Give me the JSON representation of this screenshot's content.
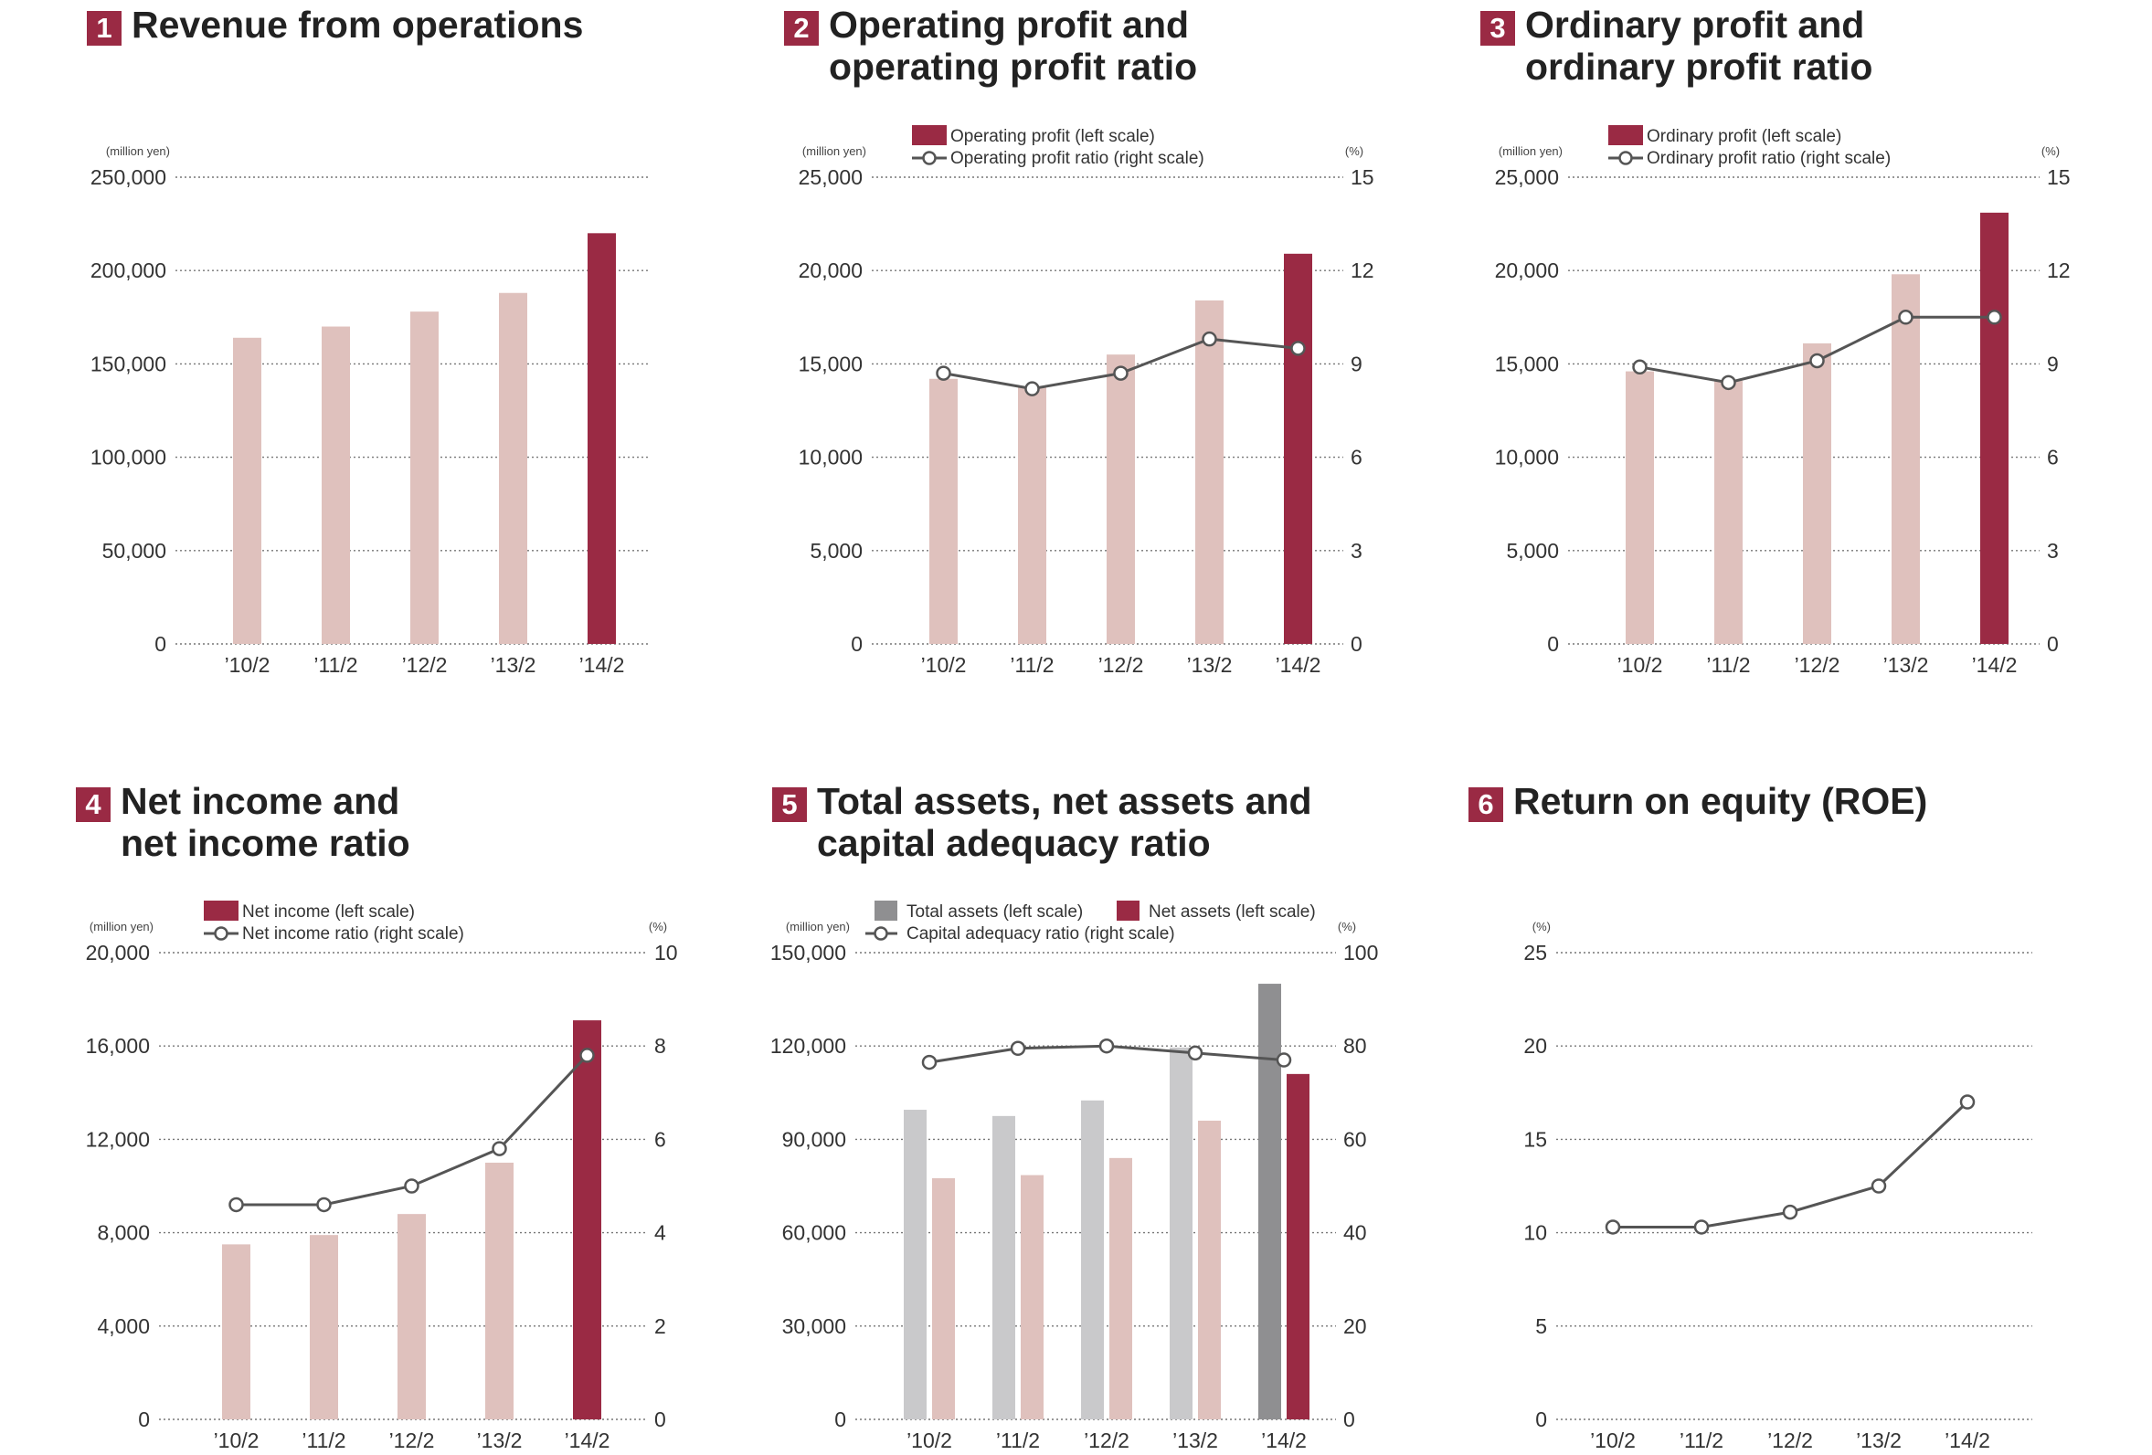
{
  "colors": {
    "accent": "#9a2a44",
    "bar_light": "#dfc1bd",
    "gray_dark": "#8f8f91",
    "gray_light": "#c9c9cb",
    "line": "#555555"
  },
  "chart_data": [
    {
      "number": "1",
      "title_lines": [
        "Revenue from operations"
      ],
      "type": "bar",
      "left_unit": "(million yen)",
      "right_unit": "",
      "categories": [
        "’10/2",
        "’11/2",
        "’12/2",
        "’13/2",
        "’14/2"
      ],
      "ylim": [
        0,
        250000
      ],
      "yticks": [
        "250,000",
        "200,000",
        "150,000",
        "100,000",
        "50,000",
        "0"
      ],
      "legend": [],
      "series": [
        {
          "values": [
            164000,
            170000,
            178000,
            188000,
            220000
          ]
        }
      ]
    },
    {
      "number": "2",
      "title_lines": [
        "Operating profit and",
        "operating profit ratio"
      ],
      "type": "bar+line",
      "left_unit": "(million yen)",
      "right_unit": "(%)",
      "categories": [
        "’10/2",
        "’11/2",
        "’12/2",
        "’13/2",
        "’14/2"
      ],
      "ylim": [
        0,
        25000
      ],
      "yticks": [
        "25,000",
        "20,000",
        "15,000",
        "10,000",
        "5,000",
        "0"
      ],
      "y2lim": [
        0,
        15
      ],
      "y2ticks": [
        "15",
        "12",
        "9",
        "6",
        "3",
        "0"
      ],
      "legend": [
        "Operating profit (left scale)",
        "Operating profit ratio (right scale)"
      ],
      "series": [
        {
          "name": "Operating profit (left scale)",
          "values": [
            14200,
            13800,
            15500,
            18400,
            20900
          ]
        }
      ],
      "line": {
        "name": "Operating profit ratio (right scale)",
        "values": [
          8.7,
          8.2,
          8.7,
          9.8,
          9.5
        ]
      }
    },
    {
      "number": "3",
      "title_lines": [
        "Ordinary profit and",
        "ordinary profit ratio"
      ],
      "type": "bar+line",
      "left_unit": "(million yen)",
      "right_unit": "(%)",
      "categories": [
        "’10/2",
        "’11/2",
        "’12/2",
        "’13/2",
        "’14/2"
      ],
      "ylim": [
        0,
        25000
      ],
      "yticks": [
        "25,000",
        "20,000",
        "15,000",
        "10,000",
        "5,000",
        "0"
      ],
      "y2lim": [
        0,
        15
      ],
      "y2ticks": [
        "15",
        "12",
        "9",
        "6",
        "3",
        "0"
      ],
      "legend": [
        "Ordinary profit (left scale)",
        "Ordinary profit ratio (right scale)"
      ],
      "series": [
        {
          "name": "Ordinary profit (left scale)",
          "values": [
            14600,
            14100,
            16100,
            19800,
            23100
          ]
        }
      ],
      "line": {
        "name": "Ordinary profit ratio (right scale)",
        "values": [
          8.9,
          8.4,
          9.1,
          10.5,
          10.5
        ]
      }
    },
    {
      "number": "4",
      "title_lines": [
        "Net income and",
        "net income ratio"
      ],
      "type": "bar+line",
      "left_unit": "(million yen)",
      "right_unit": "(%)",
      "categories": [
        "’10/2",
        "’11/2",
        "’12/2",
        "’13/2",
        "’14/2"
      ],
      "ylim": [
        0,
        20000
      ],
      "yticks": [
        "20,000",
        "16,000",
        "12,000",
        "8,000",
        "4,000",
        "0"
      ],
      "y2lim": [
        0,
        10
      ],
      "y2ticks": [
        "10",
        "8",
        "6",
        "4",
        "2",
        "0"
      ],
      "legend": [
        "Net income (left scale)",
        "Net income ratio (right scale)"
      ],
      "series": [
        {
          "name": "Net income (left scale)",
          "values": [
            7500,
            7900,
            8800,
            11000,
            17100
          ]
        }
      ],
      "line": {
        "name": "Net income ratio (right scale)",
        "values": [
          4.6,
          4.6,
          5.0,
          5.8,
          7.8
        ]
      }
    },
    {
      "number": "5",
      "title_lines": [
        "Total assets, net assets and",
        "capital adequacy ratio"
      ],
      "type": "grouped-bar+line",
      "left_unit": "(million yen)",
      "right_unit": "(%)",
      "categories": [
        "’10/2",
        "’11/2",
        "’12/2",
        "’13/2",
        "’14/2"
      ],
      "ylim": [
        0,
        150000
      ],
      "yticks": [
        "150,000",
        "120,000",
        "90,000",
        "60,000",
        "30,000",
        "0"
      ],
      "y2lim": [
        0,
        100
      ],
      "y2ticks": [
        "100",
        "80",
        "60",
        "40",
        "20",
        "0"
      ],
      "legend": [
        "Total assets (left scale)",
        "Net assets (left scale)",
        "Capital adequacy ratio (right scale)"
      ],
      "series": [
        {
          "name": "Total assets (left scale)",
          "values": [
            99500,
            97500,
            102500,
            119500,
            140000
          ]
        },
        {
          "name": "Net assets (left scale)",
          "values": [
            77500,
            78500,
            84000,
            96000,
            111000
          ]
        }
      ],
      "line": {
        "name": "Capital adequacy ratio (right scale)",
        "values": [
          76.5,
          79.5,
          80,
          78.5,
          77
        ]
      }
    },
    {
      "number": "6",
      "title_lines": [
        "Return on equity (ROE)"
      ],
      "type": "line",
      "left_unit": "(%)",
      "right_unit": "",
      "categories": [
        "’10/2",
        "’11/2",
        "’12/2",
        "’13/2",
        "’14/2"
      ],
      "ylim": [
        0,
        25
      ],
      "yticks": [
        "25",
        "20",
        "15",
        "10",
        "5",
        "0"
      ],
      "legend": [],
      "series": [],
      "line": {
        "values": [
          10.3,
          10.3,
          11.1,
          12.5,
          17.0
        ]
      }
    }
  ]
}
